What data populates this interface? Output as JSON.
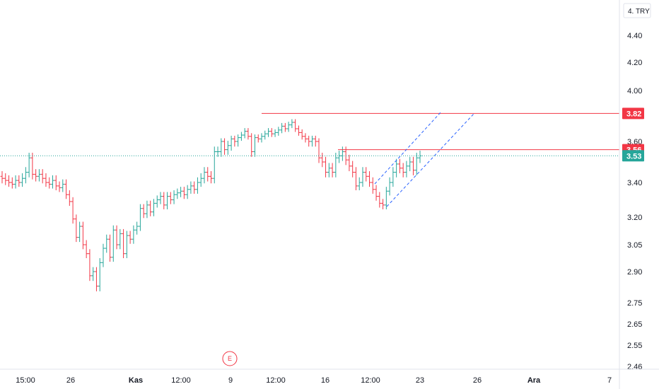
{
  "chart_data": {
    "type": "candlestick",
    "currency_label": "4. TRY",
    "y_axis_ticks": [
      "4.40",
      "4.20",
      "4.00",
      "3.60",
      "3.40",
      "3.20",
      "3.05",
      "2.90",
      "2.75",
      "2.65",
      "2.55",
      "2.46"
    ],
    "y_axis_ticks_values": [
      4.4,
      4.2,
      4.0,
      3.6,
      3.4,
      3.2,
      3.05,
      2.9,
      2.75,
      2.65,
      2.55,
      2.46
    ],
    "x_axis_ticks": [
      {
        "label": "15:00",
        "bold": false
      },
      {
        "label": "26",
        "bold": false
      },
      {
        "label": "Kas",
        "bold": true
      },
      {
        "label": "12:00",
        "bold": false
      },
      {
        "label": "9",
        "bold": false
      },
      {
        "label": "12:00",
        "bold": false
      },
      {
        "label": "16",
        "bold": false
      },
      {
        "label": "12:00",
        "bold": false
      },
      {
        "label": "23",
        "bold": false
      },
      {
        "label": "26",
        "bold": false
      },
      {
        "label": "Ara",
        "bold": true
      },
      {
        "label": "7",
        "bold": false
      }
    ],
    "price_labels": [
      {
        "text": "3.82",
        "value": 3.82,
        "color": "#f23645"
      },
      {
        "text": "3.56",
        "value": 3.56,
        "color": "#f23645"
      },
      {
        "text": "3.53",
        "value": 3.53,
        "color": "#26a69a"
      }
    ],
    "horizontal_lines": [
      {
        "value": 3.82,
        "color": "#f23645"
      },
      {
        "value": 3.56,
        "color": "#f23645"
      }
    ],
    "current_price": 3.53,
    "earnings_marker": "E",
    "bars_close": [
      3.42,
      3.41,
      3.4,
      3.39,
      3.41,
      3.4,
      3.42,
      3.45,
      3.52,
      3.44,
      3.43,
      3.44,
      3.42,
      3.4,
      3.39,
      3.41,
      3.38,
      3.37,
      3.39,
      3.33,
      3.29,
      3.19,
      3.09,
      3.15,
      3.05,
      3.0,
      2.88,
      2.9,
      2.83,
      2.95,
      3.03,
      3.08,
      2.98,
      3.13,
      3.05,
      3.11,
      3.0,
      3.1,
      3.08,
      3.13,
      3.15,
      3.25,
      3.22,
      3.27,
      3.23,
      3.28,
      3.3,
      3.32,
      3.27,
      3.32,
      3.3,
      3.33,
      3.34,
      3.35,
      3.33,
      3.36,
      3.38,
      3.36,
      3.4,
      3.42,
      3.45,
      3.43,
      3.42,
      3.55,
      3.55,
      3.6,
      3.56,
      3.58,
      3.62,
      3.6,
      3.63,
      3.65,
      3.68,
      3.64,
      3.55,
      3.63,
      3.62,
      3.64,
      3.66,
      3.68,
      3.66,
      3.67,
      3.69,
      3.72,
      3.7,
      3.73,
      3.75,
      3.7,
      3.67,
      3.64,
      3.62,
      3.6,
      3.62,
      3.6,
      3.52,
      3.5,
      3.45,
      3.47,
      3.45,
      3.52,
      3.53,
      3.55,
      3.51,
      3.48,
      3.45,
      3.38,
      3.4,
      3.45,
      3.43,
      3.4,
      3.36,
      3.32,
      3.28,
      3.27,
      3.35,
      3.4,
      3.45,
      3.49,
      3.47,
      3.45,
      3.48,
      3.5,
      3.46,
      3.52,
      3.53
    ]
  }
}
